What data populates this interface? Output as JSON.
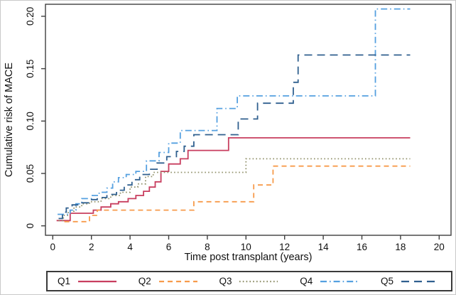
{
  "chart_data": {
    "type": "line",
    "subtype": "step-cumulative-incidence",
    "title": "",
    "xlabel": "Time post transplant (years)",
    "ylabel": "Cumulative risk of MACE",
    "xlim": [
      0,
      20
    ],
    "ylim": [
      0,
      0.21
    ],
    "xticks": [
      0,
      2,
      4,
      6,
      8,
      10,
      12,
      14,
      16,
      18,
      20
    ],
    "yticks": [
      0,
      0.05,
      0.1,
      0.15,
      0.2
    ],
    "ytick_labels": [
      "0",
      "0.05",
      "0.10",
      "0.15",
      "0.20"
    ],
    "grid": false,
    "legend_position": "bottom-box",
    "frame_color": "#3f3f3f",
    "series": [
      {
        "name": "Q1",
        "color": "#C83E5F",
        "dash": "solid",
        "x": [
          0.2,
          0.9,
          2.1,
          2.5,
          3.0,
          3.4,
          3.9,
          4.3,
          4.7,
          5.0,
          5.3,
          5.6,
          6.0,
          6.6,
          7.0,
          9.1
        ],
        "y": [
          0.005,
          0.012,
          0.015,
          0.018,
          0.021,
          0.023,
          0.026,
          0.029,
          0.033,
          0.037,
          0.042,
          0.052,
          0.059,
          0.064,
          0.072,
          0.084
        ],
        "x_end": 18.5
      },
      {
        "name": "Q2",
        "color": "#F79B4B",
        "dash": "dashed",
        "x": [
          0.6,
          1.9,
          2.3,
          7.3,
          10.4,
          11.4
        ],
        "y": [
          0.004,
          0.01,
          0.015,
          0.023,
          0.039,
          0.057
        ],
        "x_end": 18.5
      },
      {
        "name": "Q3",
        "color": "#90906A",
        "dash": "dotted",
        "x": [
          0.3,
          0.55,
          0.8,
          1.1,
          1.5,
          1.9,
          2.5,
          3.0,
          3.5,
          4.0,
          4.4,
          4.8,
          5.2,
          10.0
        ],
        "y": [
          0.005,
          0.01,
          0.014,
          0.018,
          0.021,
          0.023,
          0.026,
          0.029,
          0.032,
          0.037,
          0.04,
          0.047,
          0.051,
          0.064
        ],
        "x_end": 18.5
      },
      {
        "name": "Q4",
        "color": "#55A0E0",
        "dash": "dashdot",
        "x": [
          0.25,
          0.9,
          1.2,
          1.5,
          2.0,
          2.4,
          2.8,
          3.1,
          3.4,
          3.8,
          4.3,
          4.85,
          5.5,
          6.0,
          6.6,
          8.5,
          9.55,
          16.7
        ],
        "y": [
          0.011,
          0.015,
          0.021,
          0.026,
          0.029,
          0.032,
          0.036,
          0.042,
          0.046,
          0.049,
          0.052,
          0.062,
          0.07,
          0.079,
          0.091,
          0.112,
          0.124,
          0.207
        ],
        "x_end": 18.5
      },
      {
        "name": "Q5",
        "color": "#30608F",
        "dash": "longdash",
        "x": [
          0.3,
          0.5,
          0.7,
          1.0,
          1.4,
          1.9,
          2.3,
          2.8,
          3.3,
          3.7,
          4.1,
          4.5,
          5.0,
          5.4,
          5.9,
          6.4,
          6.8,
          7.3,
          9.6,
          10.6,
          12.45,
          12.7
        ],
        "y": [
          0.007,
          0.013,
          0.017,
          0.02,
          0.022,
          0.025,
          0.027,
          0.03,
          0.034,
          0.039,
          0.044,
          0.049,
          0.054,
          0.06,
          0.066,
          0.071,
          0.076,
          0.087,
          0.102,
          0.117,
          0.137,
          0.163
        ],
        "x_end": 18.5
      }
    ]
  }
}
